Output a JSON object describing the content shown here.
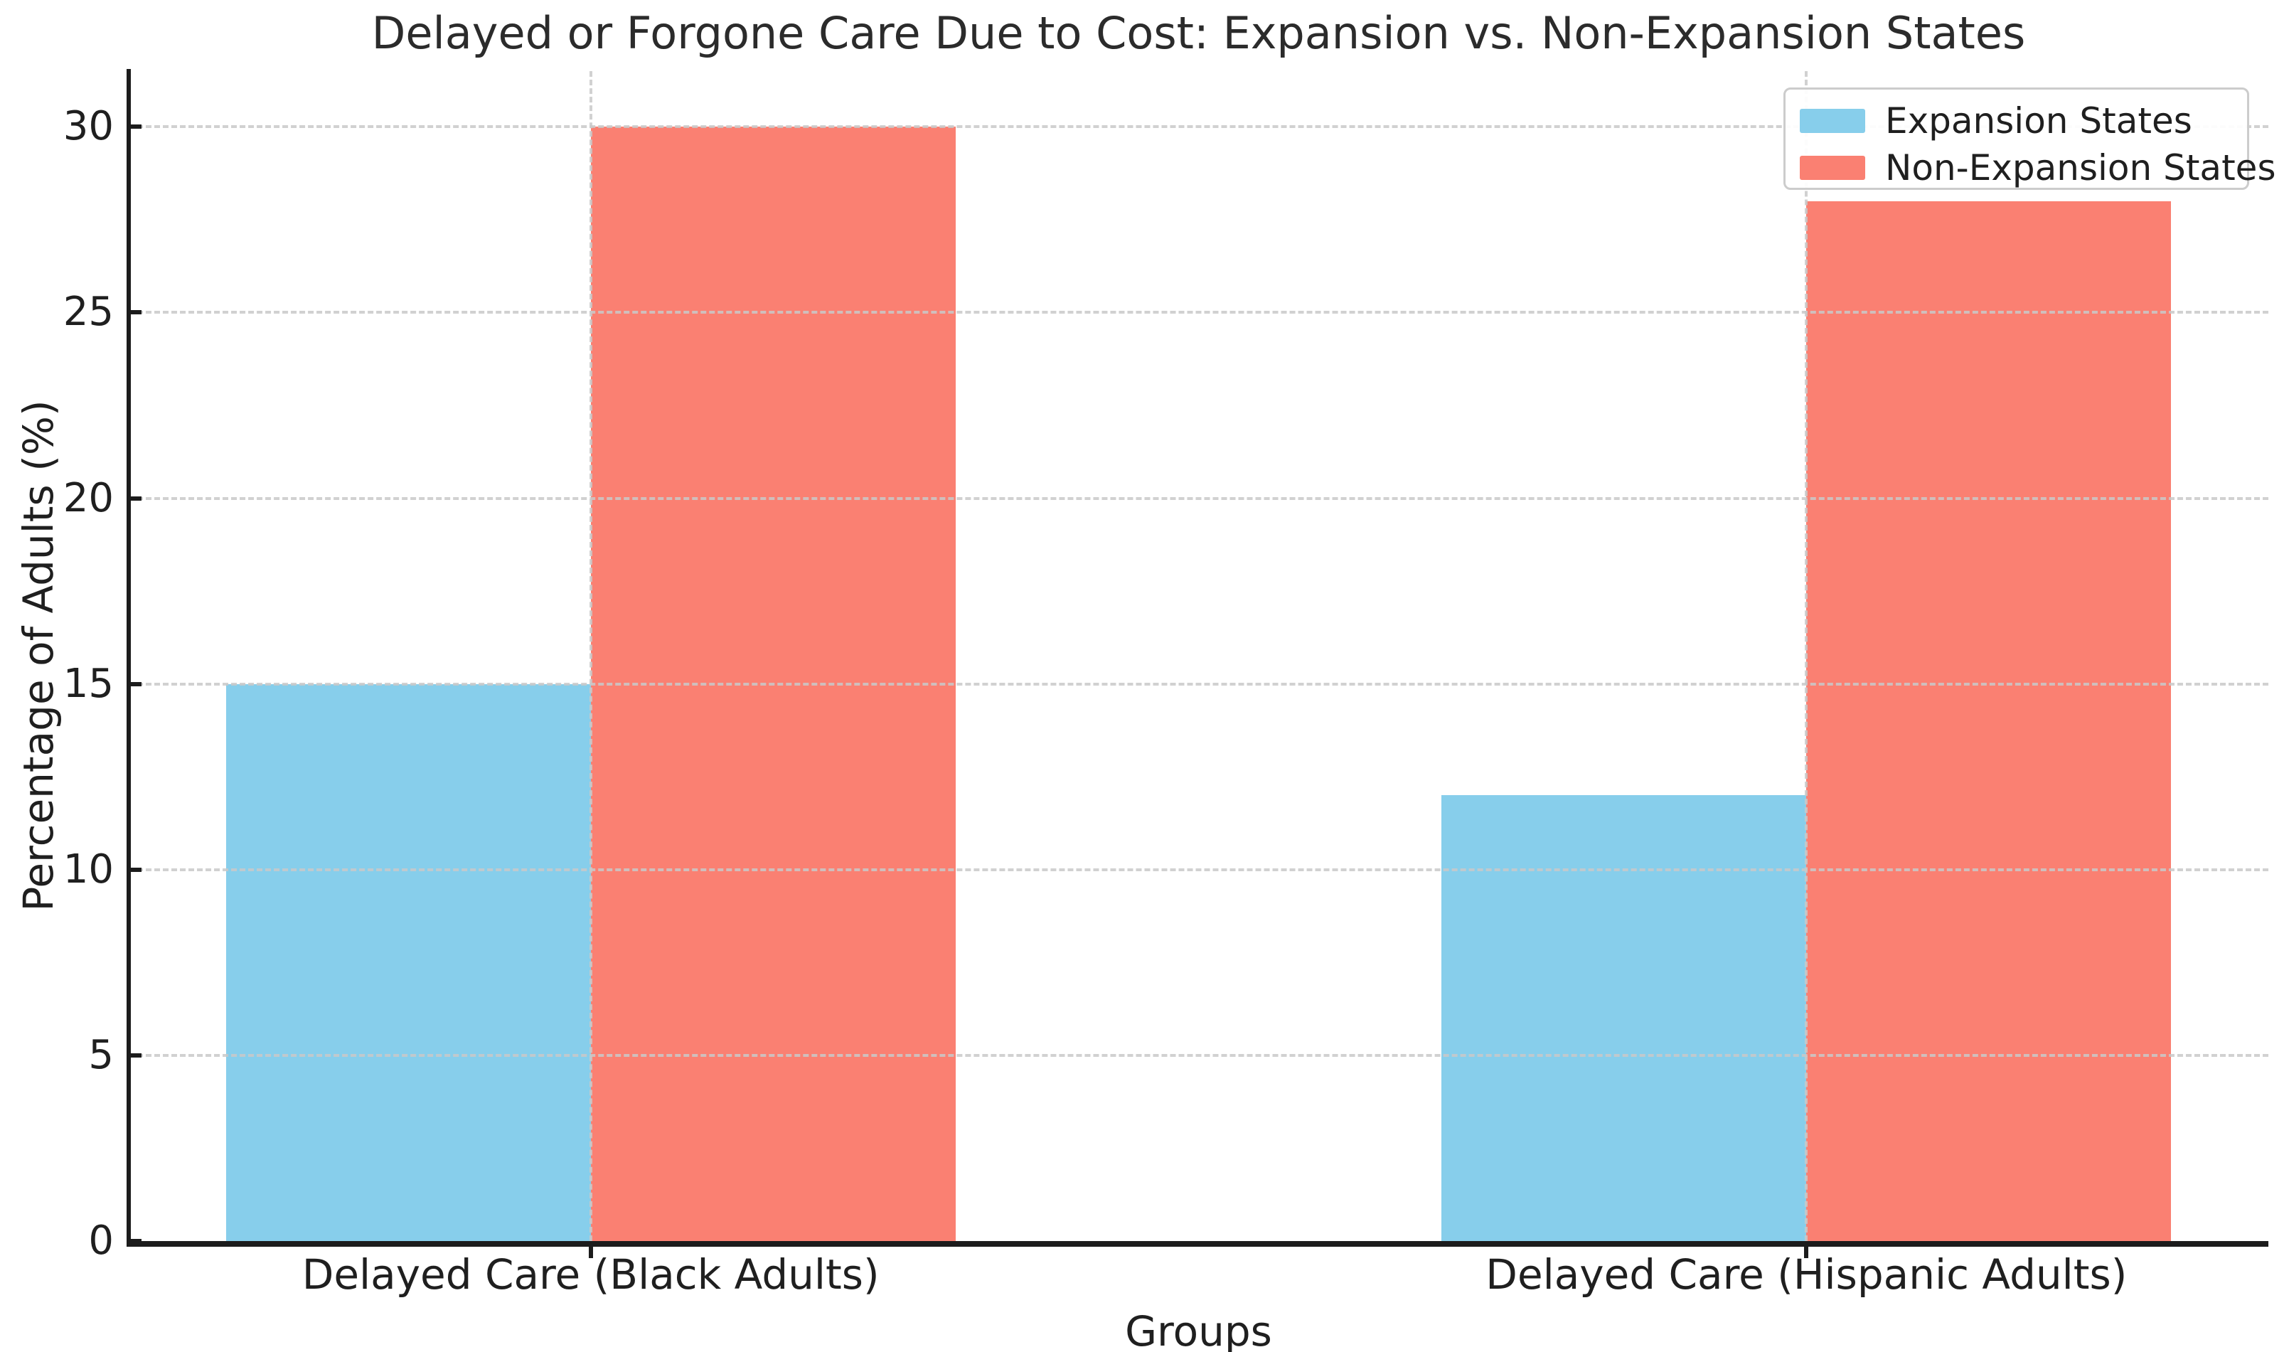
{
  "chart_data": {
    "type": "bar",
    "title": "Delayed or Forgone Care Due to Cost: Expansion vs. Non-Expansion States",
    "xlabel": "Groups",
    "ylabel": "Percentage of Adults (%)",
    "categories": [
      "Delayed Care (Black Adults)",
      "Delayed Care (Hispanic Adults)"
    ],
    "series": [
      {
        "name": "Expansion States",
        "color": "#87CEEB",
        "values": [
          15,
          12
        ]
      },
      {
        "name": "Non-Expansion States",
        "color": "#FA8072",
        "values": [
          30,
          28
        ]
      }
    ],
    "yticks": [
      0,
      5,
      10,
      15,
      20,
      25,
      30
    ],
    "ylim": [
      0,
      31.5
    ],
    "xlim": [
      -0.38,
      1.38
    ],
    "x_positions": [
      0,
      1
    ],
    "bar_width": 0.3,
    "grid": true,
    "grid_style": "dashed",
    "grid_color": "#c9c9c9",
    "legend_position": "upper right",
    "background_color": "#ffffff",
    "spine_color": "#1c1c1c"
  }
}
